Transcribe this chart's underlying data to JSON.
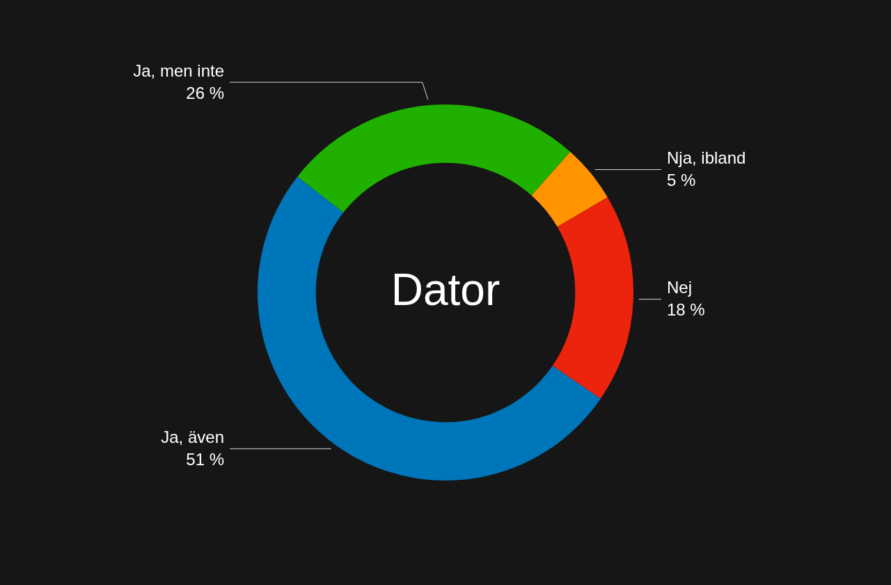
{
  "chart_data": {
    "type": "donut",
    "title": "Dator",
    "categories": [
      "Ja, men inte",
      "Nja, ibland",
      "Nej",
      "Ja, även"
    ],
    "values": [
      26,
      5,
      18,
      51
    ],
    "value_labels": [
      "26 %",
      "5 %",
      "18 %",
      "51 %"
    ],
    "colors": [
      "#1fb000",
      "#ff9300",
      "#ec230d",
      "#0076ba"
    ],
    "legend": false
  }
}
